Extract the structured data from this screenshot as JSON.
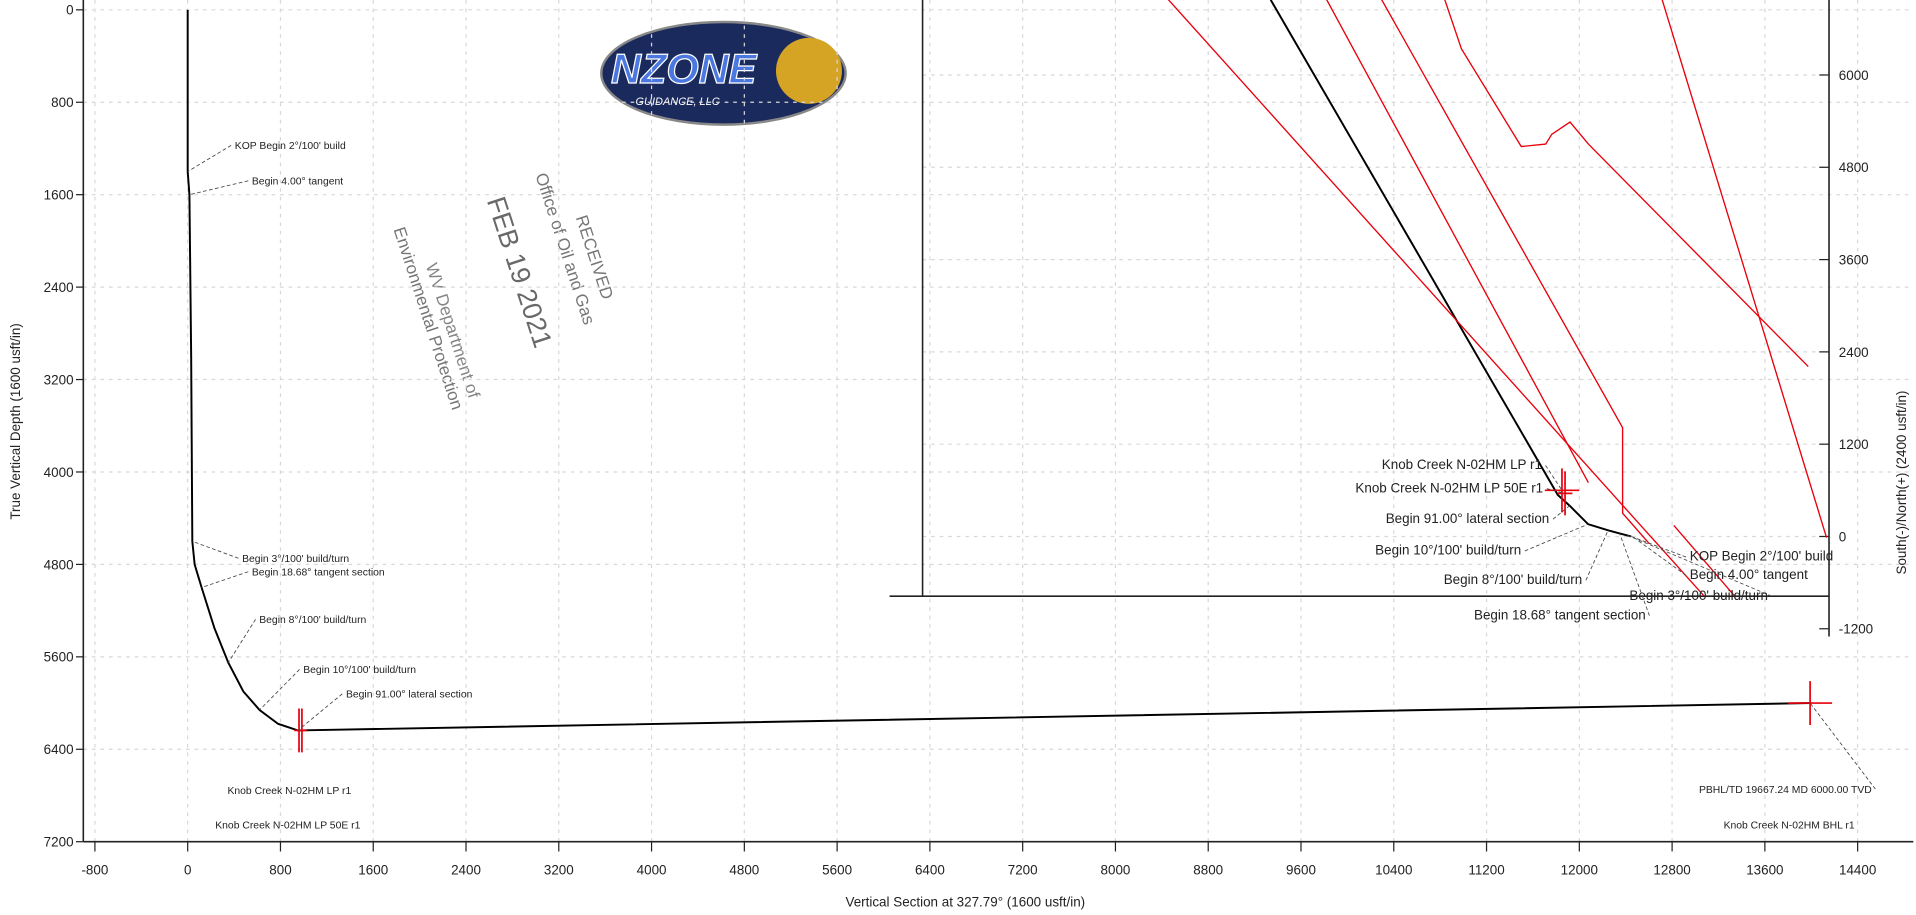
{
  "chart_data": [
    {
      "type": "line",
      "x_label": "Vertical Section at 327.79° (1600 usft/in)",
      "y_label": "True Vertical Depth (1600 usft/in)",
      "xlim": [
        -900,
        14880
      ],
      "ylim": [
        -85,
        7200
      ],
      "y_inverted": true,
      "y_axis": "left",
      "grid": true,
      "xticks": [
        -800,
        0,
        800,
        1600,
        2400,
        3200,
        4000,
        4800,
        5600,
        6400,
        7200,
        8000,
        8800,
        9600,
        10400,
        11200,
        12000,
        12800,
        13600,
        14400
      ],
      "yticks": [
        0,
        800,
        1600,
        2400,
        3200,
        4000,
        4800,
        5600,
        6400,
        7200
      ],
      "series": [
        {
          "color": "#000000",
          "x": [
            0,
            0,
            15,
            30,
            40,
            60,
            120,
            230,
            350,
            480,
            620,
            780,
            950,
            13990
          ],
          "values": [
            0,
            1400,
            1600,
            3000,
            4600,
            4800,
            5000,
            5350,
            5650,
            5900,
            6060,
            6180,
            6237,
            6000
          ]
        }
      ],
      "targets": [
        {
          "label": "Knob Creek N-02HM LP r1",
          "x": 960,
          "y": 6237,
          "color": "#e8000b"
        },
        {
          "label": "Knob Creek N-02HM LP 50E r1",
          "x": 985,
          "y": 6237,
          "color": "#e8000b"
        },
        {
          "label": "Knob Creek N-02HM BHL r1",
          "x": 13990,
          "y": 6000,
          "color": "#e8000b"
        }
      ],
      "annotations": [
        {
          "text": "KOP Begin 2°/100' build",
          "x": 0,
          "y": 1400
        },
        {
          "text": "Begin 4.00° tangent",
          "x": 15,
          "y": 1600
        },
        {
          "text": "Begin 3°/100' build/turn",
          "x": 40,
          "y": 4600
        },
        {
          "text": "Begin 18.68° tangent section",
          "x": 120,
          "y": 5000
        },
        {
          "text": "Begin 8°/100' build/turn",
          "x": 350,
          "y": 5650
        },
        {
          "text": "Begin 10°/100' build/turn",
          "x": 620,
          "y": 6060
        },
        {
          "text": "Begin 91.00° lateral section",
          "x": 950,
          "y": 6237
        },
        {
          "text": "PBHL/TD 19667.24 MD 6000.00 TVD",
          "x": 13990,
          "y": 6000
        }
      ]
    },
    {
      "type": "line",
      "y_label": "South(-)/North(+) (2400 usft/in)",
      "xlim": [
        -9220,
        2575
      ],
      "ylim": [
        -1300,
        6975
      ],
      "y_inverted": false,
      "y_axis": "right",
      "grid": true,
      "yticks": [
        -1200,
        0,
        1200,
        2400,
        3600,
        4800,
        6000
      ],
      "series": [
        {
          "color": "#000000",
          "x": [
            0,
            -150,
            -300,
            -560,
            -800,
            -954,
            -4690
          ],
          "values": [
            0,
            40,
            80,
            160,
            400,
            540,
            6977
          ]
        },
        {
          "color": "#e8000b",
          "x": [
            -6040,
            954
          ],
          "values": [
            7000,
            -779
          ]
        },
        {
          "color": "#e8000b",
          "x": [
            -3973,
            -556
          ],
          "values": [
            7000,
            699
          ]
        },
        {
          "color": "#e8000b",
          "x": [
            -3258,
            -111,
            -111,
            238
          ],
          "values": [
            7000,
            1415,
            302,
            -95
          ]
        },
        {
          "color": "#e8000b",
          "x": [
            -2432,
            -2209,
            -1430,
            -1112,
            -1033,
            -795,
            -556,
            2305
          ],
          "values": [
            7000,
            6342,
            5070,
            5102,
            5229,
            5388,
            5102,
            2209
          ]
        },
        {
          "color": "#e8000b",
          "x": [
            397,
            2543
          ],
          "values": [
            7000,
            -16
          ]
        },
        {
          "color": "#e8000b",
          "x": [
            556,
            1351
          ],
          "values": [
            143,
            -779
          ]
        }
      ],
      "targets": [
        {
          "label": "Knob Creek N-02HM LP r1",
          "x": -900,
          "y": 600,
          "color": "#e8000b"
        },
        {
          "label": "Knob Creek N-02HM LP 50E r1",
          "x": -860,
          "y": 560,
          "color": "#e8000b"
        }
      ],
      "annotations": [
        {
          "text": "KOP Begin 2°/100' build",
          "x": 0,
          "y": 0
        },
        {
          "text": "Begin 4.00° tangent",
          "x": 30,
          "y": -10
        },
        {
          "text": "Begin 3°/100' build/turn",
          "x": -60,
          "y": 20
        },
        {
          "text": "Begin 18.68° tangent section",
          "x": -150,
          "y": 40
        },
        {
          "text": "Begin 8°/100' build/turn",
          "x": -300,
          "y": 80
        },
        {
          "text": "Begin 10°/100' build/turn",
          "x": -560,
          "y": 160
        },
        {
          "text": "Begin 91.00° lateral section",
          "x": -800,
          "y": 400
        }
      ]
    }
  ],
  "logo": {
    "name": "NZONE",
    "subtitle": "GUIDANCE, LLC"
  },
  "stamp": {
    "lines": [
      "RECEIVED",
      "Office of Oil and Gas",
      "FEB 19 2021",
      "WV Department of",
      "Environmental Protection"
    ]
  }
}
